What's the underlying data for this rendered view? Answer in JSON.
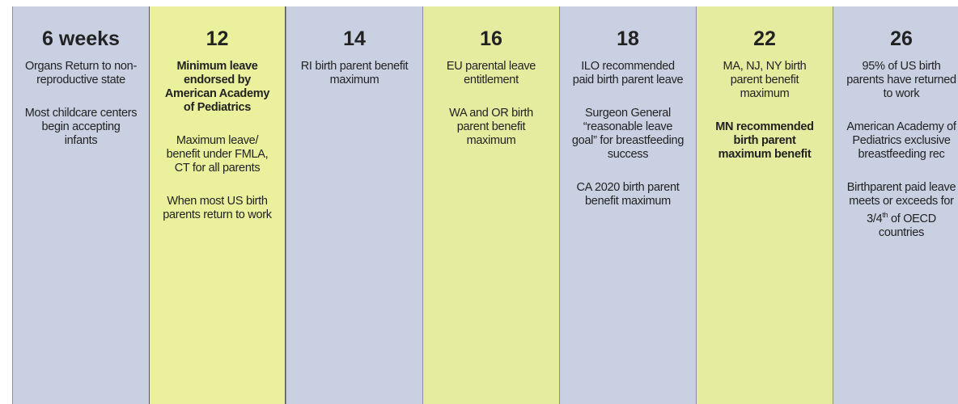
{
  "columns": [
    {
      "header": "6 weeks",
      "items": [
        {
          "text": "Organs Return to non-reproductive state",
          "bold": false
        },
        {
          "text": "Most childcare centers begin accepting infants",
          "bold": false
        }
      ]
    },
    {
      "header": "12",
      "items": [
        {
          "text": "Minimum leave endorsed by American Academy of Pediatrics",
          "bold": true
        },
        {
          "text": "Maximum leave/ benefit under FMLA, CT for all parents",
          "bold": false
        },
        {
          "text": "When most US birth parents return to work",
          "bold": false
        }
      ]
    },
    {
      "header": "14",
      "items": [
        {
          "text": "RI birth parent benefit maximum",
          "bold": false
        }
      ]
    },
    {
      "header": "16",
      "items": [
        {
          "text": "EU parental leave entitlement",
          "bold": false
        },
        {
          "text": "WA and OR birth parent benefit maximum",
          "bold": false
        }
      ]
    },
    {
      "header": "18",
      "items": [
        {
          "text": "ILO recommended paid birth parent leave",
          "bold": false
        },
        {
          "text": "Surgeon General “reasonable leave goal” for breastfeeding success",
          "bold": false
        },
        {
          "text": "CA 2020 birth parent benefit maximum",
          "bold": false
        }
      ]
    },
    {
      "header": "22",
      "items": [
        {
          "text": "MA, NJ, NY birth parent benefit maximum",
          "bold": false
        },
        {
          "text": "MN recommended birth parent maximum benefit",
          "bold": true
        }
      ]
    },
    {
      "header": "26",
      "items": [
        {
          "text": "95% of US birth parents have returned to work",
          "bold": false
        },
        {
          "text": "American Academy of Pediatrics exclusive breastfeeding rec",
          "bold": false
        },
        {
          "text": "Birthparent paid leave meets or exceeds for 3/4",
          "sup": "th",
          "after": " of OECD countries",
          "bold": false
        }
      ]
    }
  ]
}
